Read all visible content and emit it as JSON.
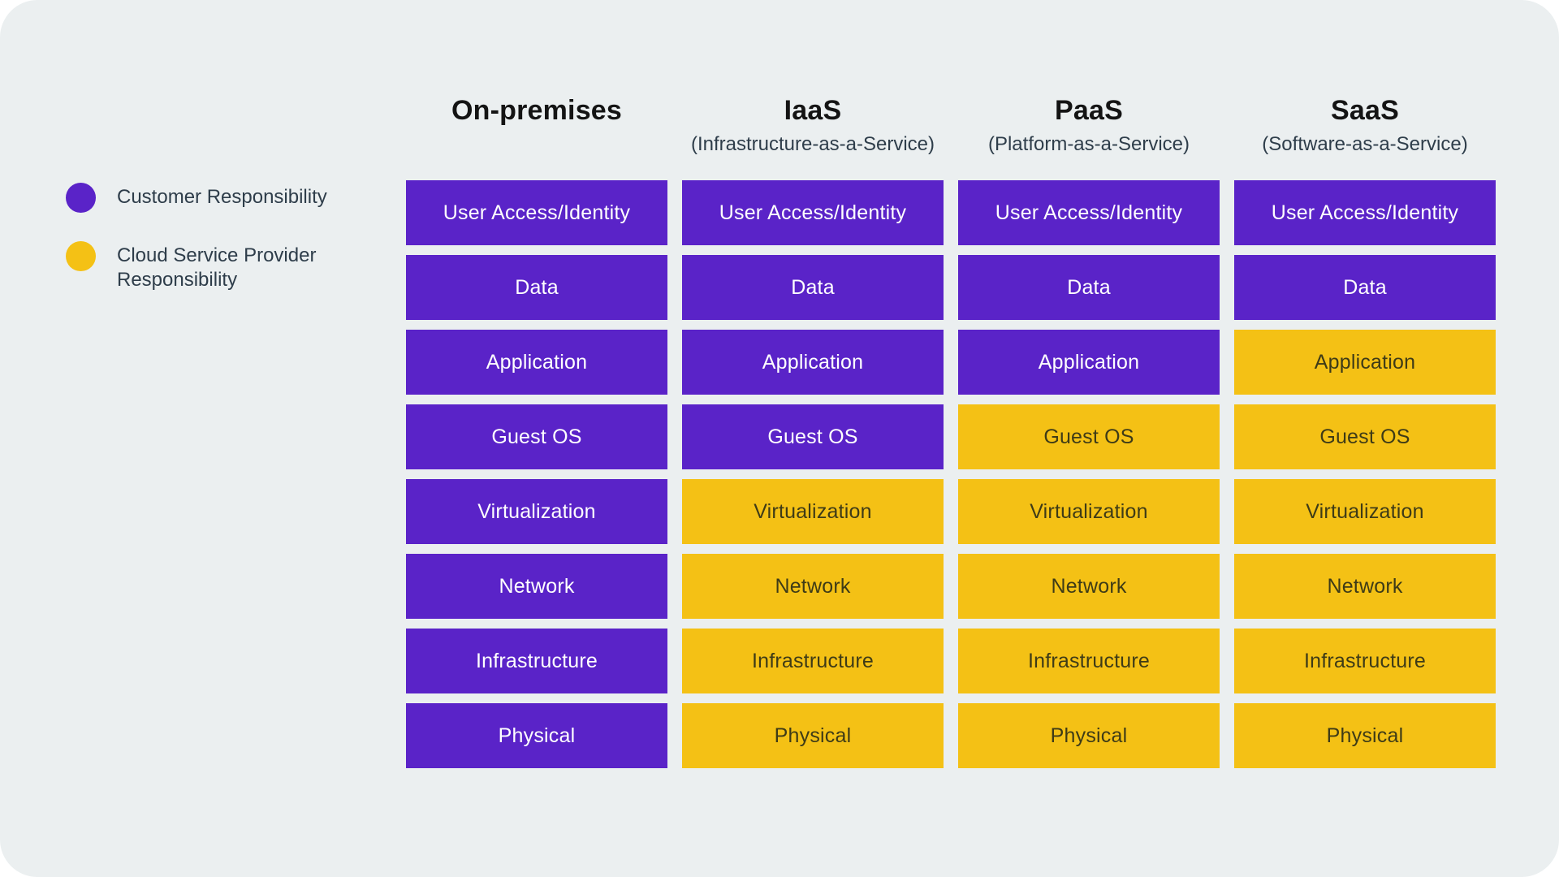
{
  "colors": {
    "customer": "#5a23c8",
    "provider": "#f4c115",
    "background": "#ebeff0",
    "page": "#ffffff",
    "heading_text": "#141414",
    "subtitle_text": "#2e3d4a",
    "text_on_customer": "#ffffff",
    "text_on_provider": "#3e3b17"
  },
  "legend": {
    "items": [
      {
        "label": "Customer Responsibility",
        "color_key": "customer",
        "icon": "customer-responsibility-dot-icon"
      },
      {
        "label": "Cloud Service Provider Responsibility",
        "color_key": "provider",
        "icon": "provider-responsibility-dot-icon"
      }
    ]
  },
  "row_labels": [
    "User Access/Identity",
    "Data",
    "Application",
    "Guest OS",
    "Virtualization",
    "Network",
    "Infrastructure",
    "Physical"
  ],
  "columns": [
    {
      "title": "On-premises",
      "subtitle": "",
      "cells": [
        {
          "label": "User Access/Identity",
          "owner": "customer"
        },
        {
          "label": "Data",
          "owner": "customer"
        },
        {
          "label": "Application",
          "owner": "customer"
        },
        {
          "label": "Guest OS",
          "owner": "customer"
        },
        {
          "label": "Virtualization",
          "owner": "customer"
        },
        {
          "label": "Network",
          "owner": "customer"
        },
        {
          "label": "Infrastructure",
          "owner": "customer"
        },
        {
          "label": "Physical",
          "owner": "customer"
        }
      ]
    },
    {
      "title": "IaaS",
      "subtitle": "(Infrastructure-as-a-Service)",
      "cells": [
        {
          "label": "User Access/Identity",
          "owner": "customer"
        },
        {
          "label": "Data",
          "owner": "customer"
        },
        {
          "label": "Application",
          "owner": "customer"
        },
        {
          "label": "Guest OS",
          "owner": "customer"
        },
        {
          "label": "Virtualization",
          "owner": "provider"
        },
        {
          "label": "Network",
          "owner": "provider"
        },
        {
          "label": "Infrastructure",
          "owner": "provider"
        },
        {
          "label": "Physical",
          "owner": "provider"
        }
      ]
    },
    {
      "title": "PaaS",
      "subtitle": "(Platform-as-a-Service)",
      "cells": [
        {
          "label": "User Access/Identity",
          "owner": "customer"
        },
        {
          "label": "Data",
          "owner": "customer"
        },
        {
          "label": "Application",
          "owner": "customer"
        },
        {
          "label": "Guest OS",
          "owner": "provider"
        },
        {
          "label": "Virtualization",
          "owner": "provider"
        },
        {
          "label": "Network",
          "owner": "provider"
        },
        {
          "label": "Infrastructure",
          "owner": "provider"
        },
        {
          "label": "Physical",
          "owner": "provider"
        }
      ]
    },
    {
      "title": "SaaS",
      "subtitle": "(Software-as-a-Service)",
      "cells": [
        {
          "label": "User Access/Identity",
          "owner": "customer"
        },
        {
          "label": "Data",
          "owner": "customer"
        },
        {
          "label": "Application",
          "owner": "provider"
        },
        {
          "label": "Guest OS",
          "owner": "provider"
        },
        {
          "label": "Virtualization",
          "owner": "provider"
        },
        {
          "label": "Network",
          "owner": "provider"
        },
        {
          "label": "Infrastructure",
          "owner": "provider"
        },
        {
          "label": "Physical",
          "owner": "provider"
        }
      ]
    }
  ],
  "chart_data": {
    "type": "table",
    "columns": [
      "On-premises",
      "IaaS",
      "PaaS",
      "SaaS"
    ],
    "rows": [
      "User Access/Identity",
      "Data",
      "Application",
      "Guest OS",
      "Virtualization",
      "Network",
      "Infrastructure",
      "Physical"
    ],
    "matrix": [
      [
        "customer",
        "customer",
        "customer",
        "customer"
      ],
      [
        "customer",
        "customer",
        "customer",
        "customer"
      ],
      [
        "customer",
        "customer",
        "customer",
        "provider"
      ],
      [
        "customer",
        "customer",
        "provider",
        "provider"
      ],
      [
        "customer",
        "provider",
        "provider",
        "provider"
      ],
      [
        "customer",
        "provider",
        "provider",
        "provider"
      ],
      [
        "customer",
        "provider",
        "provider",
        "provider"
      ],
      [
        "customer",
        "provider",
        "provider",
        "provider"
      ]
    ],
    "legend": {
      "customer": "Customer Responsibility",
      "provider": "Cloud Service Provider Responsibility"
    }
  }
}
